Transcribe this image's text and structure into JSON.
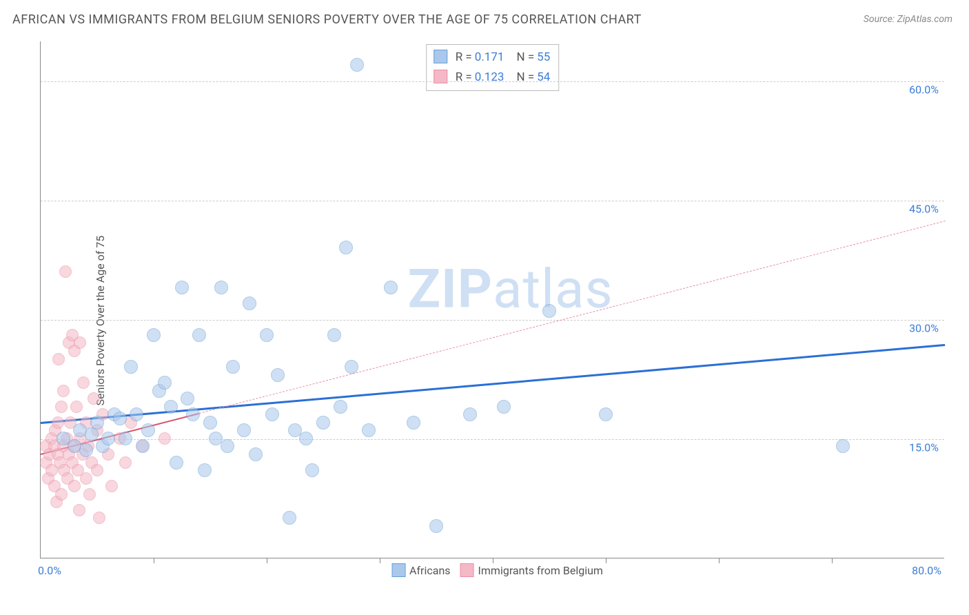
{
  "title": "AFRICAN VS IMMIGRANTS FROM BELGIUM SENIORS POVERTY OVER THE AGE OF 75 CORRELATION CHART",
  "source": "Source: ZipAtlas.com",
  "ylabel": "Seniors Poverty Over the Age of 75",
  "watermark_bold": "ZIP",
  "watermark_rest": "atlas",
  "chart": {
    "type": "scatter",
    "xlim": [
      0,
      80
    ],
    "ylim": [
      0,
      65
    ],
    "x_origin_label": "0.0%",
    "x_max_label": "80.0%",
    "grid_color": "#cccccc",
    "axis_color": "#888888",
    "yticks": [
      {
        "v": 15,
        "label": "15.0%"
      },
      {
        "v": 30,
        "label": "30.0%"
      },
      {
        "v": 45,
        "label": "45.0%"
      },
      {
        "v": 60,
        "label": "60.0%"
      }
    ],
    "xticks": [
      10,
      20,
      30,
      40,
      50,
      60,
      70
    ],
    "series": [
      {
        "name": "Africans",
        "legend_label": "Africans",
        "fill": "#a9c8ec",
        "stroke": "#6a9fd4",
        "fill_opacity": 0.55,
        "marker_radius": 10,
        "r_label": "R =",
        "r_value": "0.171",
        "n_label": "N =",
        "n_value": "55",
        "trend": {
          "x1": 0,
          "y1": 17.2,
          "x2": 80,
          "y2": 27.0,
          "color": "#2a6fd6",
          "width": 3,
          "dash": false
        },
        "points": [
          [
            2,
            15
          ],
          [
            3,
            14
          ],
          [
            3.5,
            16
          ],
          [
            4,
            13.5
          ],
          [
            4.5,
            15.5
          ],
          [
            5,
            17
          ],
          [
            5.5,
            14
          ],
          [
            6,
            15
          ],
          [
            6.5,
            18
          ],
          [
            7,
            17.5
          ],
          [
            7.5,
            15
          ],
          [
            8,
            24
          ],
          [
            8.5,
            18
          ],
          [
            9,
            14
          ],
          [
            9.5,
            16
          ],
          [
            10,
            28
          ],
          [
            10.5,
            21
          ],
          [
            11,
            22
          ],
          [
            11.5,
            19
          ],
          [
            12,
            12
          ],
          [
            12.5,
            34
          ],
          [
            13,
            20
          ],
          [
            13.5,
            18
          ],
          [
            14,
            28
          ],
          [
            14.5,
            11
          ],
          [
            15,
            17
          ],
          [
            15.5,
            15
          ],
          [
            16,
            34
          ],
          [
            16.5,
            14
          ],
          [
            17,
            24
          ],
          [
            18,
            16
          ],
          [
            18.5,
            32
          ],
          [
            19,
            13
          ],
          [
            20,
            28
          ],
          [
            20.5,
            18
          ],
          [
            21,
            23
          ],
          [
            22,
            5
          ],
          [
            22.5,
            16
          ],
          [
            23.5,
            15
          ],
          [
            24,
            11
          ],
          [
            25,
            17
          ],
          [
            26,
            28
          ],
          [
            26.5,
            19
          ],
          [
            27,
            39
          ],
          [
            27.5,
            24
          ],
          [
            28,
            62
          ],
          [
            29,
            16
          ],
          [
            31,
            34
          ],
          [
            33,
            17
          ],
          [
            35,
            4
          ],
          [
            38,
            18
          ],
          [
            41,
            19
          ],
          [
            45,
            31
          ],
          [
            50,
            18
          ],
          [
            71,
            14
          ]
        ]
      },
      {
        "name": "Immigrants from Belgium",
        "legend_label": "Immigrants from Belgium",
        "fill": "#f4b8c6",
        "stroke": "#e98fa6",
        "fill_opacity": 0.55,
        "marker_radius": 9,
        "r_label": "R =",
        "r_value": "0.123",
        "n_label": "N =",
        "n_value": "54",
        "trend": {
          "x1": 0,
          "y1": 13.2,
          "x2": 80,
          "y2": 42.5,
          "color": "#e98fa6",
          "width": 1.5,
          "dash": true
        },
        "trend_solid_until_x": 14,
        "trend_solid": {
          "color": "#d94f6a",
          "width": 2.5
        },
        "points": [
          [
            0.5,
            12
          ],
          [
            0.5,
            14
          ],
          [
            0.7,
            10
          ],
          [
            0.8,
            13
          ],
          [
            1,
            15
          ],
          [
            1,
            11
          ],
          [
            1.2,
            9
          ],
          [
            1.2,
            14
          ],
          [
            1.3,
            16
          ],
          [
            1.4,
            7
          ],
          [
            1.5,
            13
          ],
          [
            1.5,
            17
          ],
          [
            1.6,
            25
          ],
          [
            1.7,
            12
          ],
          [
            1.8,
            19
          ],
          [
            1.8,
            8
          ],
          [
            2,
            14
          ],
          [
            2,
            21
          ],
          [
            2.1,
            11
          ],
          [
            2.2,
            36
          ],
          [
            2.3,
            15
          ],
          [
            2.4,
            10
          ],
          [
            2.5,
            13
          ],
          [
            2.5,
            27
          ],
          [
            2.6,
            17
          ],
          [
            2.8,
            12
          ],
          [
            2.8,
            28
          ],
          [
            3,
            14
          ],
          [
            3,
            9
          ],
          [
            3,
            26
          ],
          [
            3.2,
            19
          ],
          [
            3.3,
            11
          ],
          [
            3.4,
            6
          ],
          [
            3.5,
            15
          ],
          [
            3.5,
            27
          ],
          [
            3.7,
            13
          ],
          [
            3.8,
            22
          ],
          [
            4,
            10
          ],
          [
            4,
            17
          ],
          [
            4.2,
            14
          ],
          [
            4.3,
            8
          ],
          [
            4.5,
            12
          ],
          [
            4.7,
            20
          ],
          [
            5,
            11
          ],
          [
            5,
            16
          ],
          [
            5.2,
            5
          ],
          [
            5.5,
            18
          ],
          [
            6,
            13
          ],
          [
            6.3,
            9
          ],
          [
            7,
            15
          ],
          [
            7.5,
            12
          ],
          [
            8,
            17
          ],
          [
            9,
            14
          ],
          [
            11,
            15
          ]
        ]
      }
    ]
  }
}
